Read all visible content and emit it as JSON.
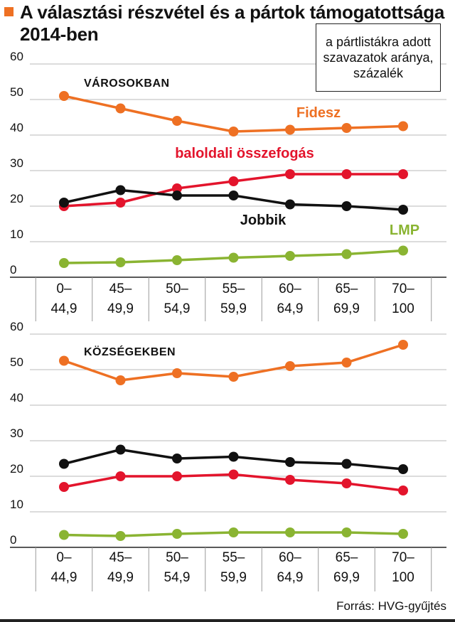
{
  "title": "A választási részvétel és a pártok támogatottsága 2014-ben",
  "unit_label": "a pártlistákra adott szavazatok aránya, százalék",
  "source": "Forrás: HVG-gyűjtés",
  "chart_data": [
    {
      "type": "line",
      "panel_label": "VÁROSOKBAN",
      "categories": [
        [
          "0–",
          "44,9"
        ],
        [
          "45–",
          "49,9"
        ],
        [
          "50–",
          "54,9"
        ],
        [
          "55–",
          "59,9"
        ],
        [
          "60–",
          "64,9"
        ],
        [
          "65–",
          "69,9"
        ],
        [
          "70–",
          "100"
        ]
      ],
      "ylim": [
        0,
        60
      ],
      "yticks": [
        0,
        10,
        20,
        30,
        40,
        50,
        60
      ],
      "grid": true,
      "series": [
        {
          "name": "Fidesz",
          "color": "#ee7023",
          "values": [
            51,
            47.5,
            44,
            41,
            41.5,
            42,
            42.5
          ]
        },
        {
          "name": "baloldali összefogás",
          "color": "#e3142c",
          "values": [
            20,
            21,
            25,
            27,
            29,
            29,
            29
          ]
        },
        {
          "name": "Jobbik",
          "color": "#111111",
          "values": [
            21,
            24.5,
            23,
            23,
            20.5,
            20,
            19
          ]
        },
        {
          "name": "LMP",
          "color": "#8ab432",
          "values": [
            4,
            4.2,
            4.8,
            5.5,
            6,
            6.5,
            7.5
          ]
        }
      ]
    },
    {
      "type": "line",
      "panel_label": "KÖZSÉGEKBEN",
      "categories": [
        [
          "0–",
          "44,9"
        ],
        [
          "45–",
          "49,9"
        ],
        [
          "50–",
          "54,9"
        ],
        [
          "55–",
          "59,9"
        ],
        [
          "60–",
          "64,9"
        ],
        [
          "65–",
          "69,9"
        ],
        [
          "70–",
          "100"
        ]
      ],
      "ylim": [
        0,
        60
      ],
      "yticks": [
        0,
        10,
        20,
        30,
        40,
        50,
        60
      ],
      "grid": true,
      "series": [
        {
          "name": "",
          "color": "#ee7023",
          "values": [
            52.5,
            47,
            49,
            48,
            51,
            52,
            57
          ]
        },
        {
          "name": "",
          "color": "#e3142c",
          "values": [
            17,
            20,
            20,
            20.5,
            19,
            18,
            16
          ]
        },
        {
          "name": "",
          "color": "#111111",
          "values": [
            23.5,
            27.5,
            25,
            25.5,
            24,
            23.5,
            22
          ]
        },
        {
          "name": "",
          "color": "#8ab432",
          "values": [
            3.5,
            3.2,
            3.8,
            4.2,
            4.2,
            4.2,
            3.8
          ]
        }
      ]
    }
  ]
}
